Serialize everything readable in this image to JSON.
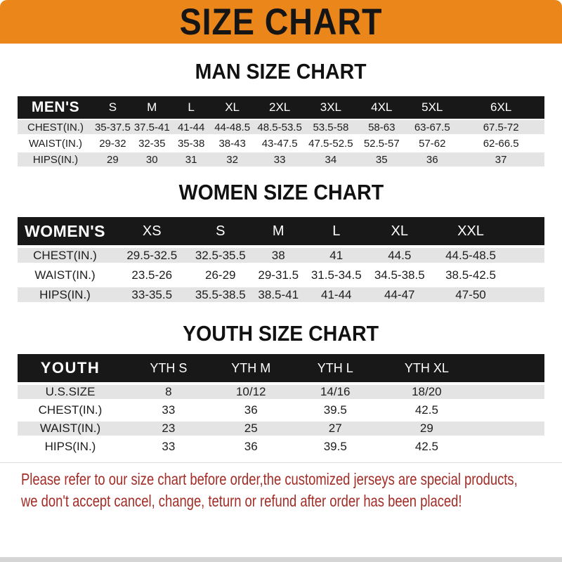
{
  "banner": {
    "title": "SIZE CHART"
  },
  "colors": {
    "banner_orange": "#EB861B",
    "header_black": "#181818",
    "row_gray": "#E4E4E4",
    "note_red": "#A32C26"
  },
  "sections": {
    "men": {
      "heading": "MAN SIZE CHART",
      "header": [
        "MEN'S",
        "S",
        "M",
        "L",
        "XL",
        "2XL",
        "3XL",
        "4XL",
        "5XL",
        "6XL"
      ],
      "rows": [
        [
          "CHEST(IN.)",
          "35-37.5",
          "37.5-41",
          "41-44",
          "44-48.5",
          "48.5-53.5",
          "53.5-58",
          "58-63",
          "63-67.5",
          "67.5-72"
        ],
        [
          "WAIST(IN.)",
          "29-32",
          "32-35",
          "35-38",
          "38-43",
          "43-47.5",
          "47.5-52.5",
          "52.5-57",
          "57-62",
          "62-66.5"
        ],
        [
          "HIPS(IN.)",
          "29",
          "30",
          "31",
          "32",
          "33",
          "34",
          "35",
          "36",
          "37"
        ]
      ]
    },
    "women": {
      "heading": "WOMEN SIZE CHART",
      "header": [
        "WOMEN'S",
        "XS",
        "S",
        "M",
        "L",
        "XL",
        "XXL"
      ],
      "rows": [
        [
          "CHEST(IN.)",
          "29.5-32.5",
          "32.5-35.5",
          "38",
          "41",
          "44.5",
          "44.5-48.5"
        ],
        [
          "WAIST(IN.)",
          "23.5-26",
          "26-29",
          "29-31.5",
          "31.5-34.5",
          "34.5-38.5",
          "38.5-42.5"
        ],
        [
          "HIPS(IN.)",
          "33-35.5",
          "35.5-38.5",
          "38.5-41",
          "41-44",
          "44-47",
          "47-50"
        ]
      ]
    },
    "youth": {
      "heading": "YOUTH SIZE CHART",
      "header": [
        "YOUTH",
        "YTH S",
        "YTH M",
        "YTH L",
        "YTH XL"
      ],
      "rows": [
        [
          "U.S.SIZE",
          "8",
          "10/12",
          "14/16",
          "18/20"
        ],
        [
          "CHEST(IN.)",
          "33",
          "36",
          "39.5",
          "42.5"
        ],
        [
          "WAIST(IN.)",
          "23",
          "25",
          "27",
          "29"
        ],
        [
          "HIPS(IN.)",
          "33",
          "36",
          "39.5",
          "42.5"
        ]
      ]
    }
  },
  "footer": {
    "line1": "Please refer to our size chart before order,the customized jerseys are special products,",
    "line2": "we don't accept cancel, change, teturn or refund after order has been placed!"
  }
}
